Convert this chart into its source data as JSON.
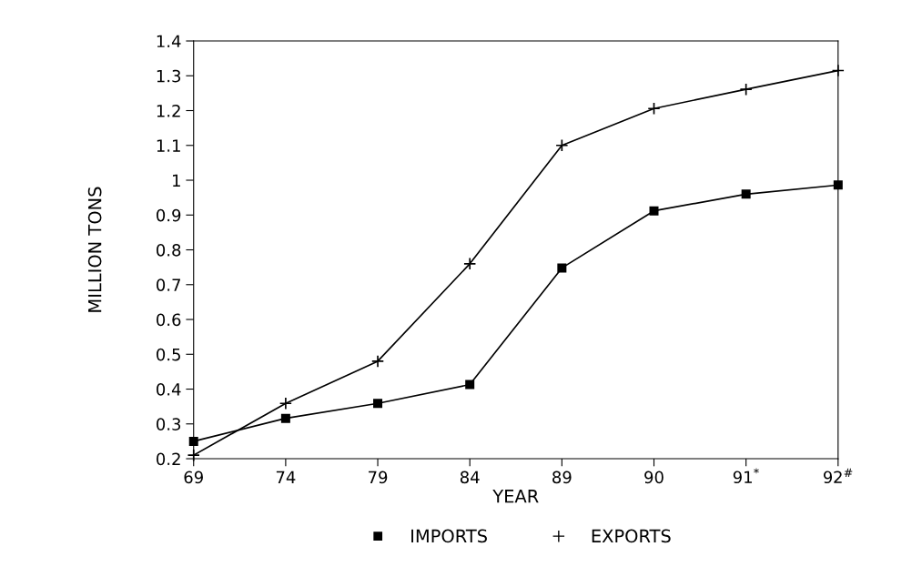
{
  "chart_data": {
    "type": "line",
    "xlabel": "YEAR",
    "ylabel": "MILLION TONS",
    "categories": [
      "69",
      "74",
      "79",
      "84",
      "89",
      "90",
      "91$^{*}$",
      "92$^{#}$"
    ],
    "series": [
      {
        "name": "IMPORTS",
        "color": "#000000",
        "marker": "square",
        "values": [
          0.25,
          0.316,
          0.359,
          0.413,
          0.748,
          0.912,
          0.96,
          0.986
        ]
      },
      {
        "name": "EXPORTS",
        "color": "#000000",
        "marker": "cross",
        "values": [
          0.21,
          0.359,
          0.48,
          0.76,
          1.1,
          1.206,
          1.261,
          1.315
        ]
      }
    ],
    "ylim": [
      0.2,
      1.4
    ],
    "yticks": [
      0.2,
      0.3,
      0.4,
      0.5,
      0.6,
      0.7,
      0.8,
      0.9,
      {
        "value": 1.0,
        "label": "1"
      },
      1.1,
      1.2,
      1.3,
      1.4
    ],
    "grid": false,
    "legend": "bottom",
    "line_style": "solid"
  }
}
